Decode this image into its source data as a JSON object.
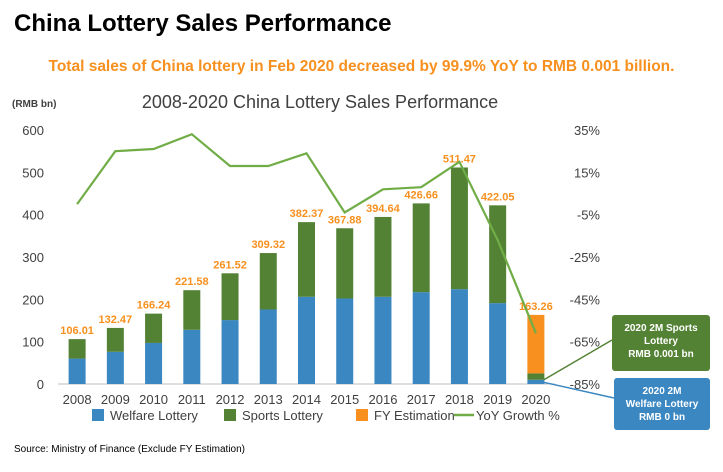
{
  "page": {
    "title": "China Lottery Sales Performance",
    "headline": "Total sales of China lottery in Feb 2020 decreased by 99.9% YoY to RMB 0.001 billion.",
    "source": "Source: Ministry of Finance (Exclude FY Estimation)"
  },
  "chart_data": {
    "type": "bar",
    "title": "2008-2020 China Lottery Sales Performance",
    "y_unit_label": "(RMB bn)",
    "categories": [
      "2008",
      "2009",
      "2010",
      "2011",
      "2012",
      "2013",
      "2014",
      "2015",
      "2016",
      "2017",
      "2018",
      "2019",
      "2020"
    ],
    "ylim": [
      0,
      600
    ],
    "y_ticks": [
      0,
      100,
      200,
      300,
      400,
      500,
      600
    ],
    "y2lim": [
      -85,
      35
    ],
    "y2_ticks": [
      "35%",
      "15%",
      "-5%",
      "-25%",
      "-45%",
      "-65%",
      "-85%"
    ],
    "y2_tick_values": [
      35,
      15,
      -5,
      -25,
      -45,
      -65,
      -85
    ],
    "stacked": true,
    "series": [
      {
        "name": "Welfare Lottery",
        "type": "bar",
        "color": "#3A87C2",
        "values": [
          60,
          76,
          97,
          128,
          151,
          176,
          206,
          202,
          206,
          217,
          224,
          191,
          10
        ]
      },
      {
        "name": "Sports Lottery",
        "type": "bar",
        "color": "#548235",
        "values": [
          46.01,
          56.47,
          69.24,
          93.58,
          110.52,
          133.32,
          176.37,
          165.88,
          188.64,
          209.66,
          287.47,
          231.05,
          15
        ]
      },
      {
        "name": "FY Estimation",
        "type": "bar",
        "color": "#F7901E",
        "values": [
          0,
          0,
          0,
          0,
          0,
          0,
          0,
          0,
          0,
          0,
          0,
          0,
          138.26
        ]
      },
      {
        "name": "YoY Growth %",
        "type": "line",
        "axis": "secondary",
        "color": "#70AD47",
        "values": [
          0,
          25,
          26,
          33,
          18,
          18,
          24,
          -4,
          7,
          8,
          20,
          -17,
          -61
        ]
      }
    ],
    "bar_total_labels": [
      "106.01",
      "132.47",
      "166.24",
      "221.58",
      "261.52",
      "309.32",
      "382.37",
      "367.88",
      "394.64",
      "426.66",
      "511.47",
      "422.05",
      "163.26"
    ],
    "callouts": [
      {
        "text": [
          "2020 2M Sports",
          "Lottery",
          "RMB 0.001 bn"
        ],
        "color": "#548235"
      },
      {
        "text": [
          "2020 2M",
          "Welfare Lottery",
          "RMB 0 bn"
        ],
        "color": "#3A87C2"
      }
    ]
  }
}
